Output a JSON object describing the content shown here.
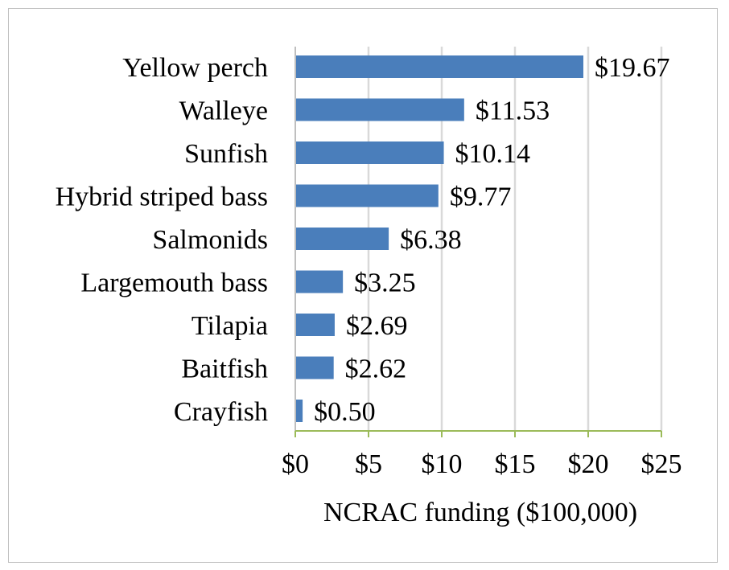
{
  "colors": {
    "bar": "#4a7ebb",
    "grid": "#d9d9d9",
    "axis": "#9bbb59",
    "frame": "#bfbfbf"
  },
  "chart_data": {
    "type": "bar",
    "orientation": "horizontal",
    "categories": [
      "Yellow perch",
      "Walleye",
      "Sunfish",
      "Hybrid striped bass",
      "Salmonids",
      "Largemouth bass",
      "Tilapia",
      "Baitfish",
      "Crayfish"
    ],
    "values": [
      19.67,
      11.53,
      10.14,
      9.77,
      6.38,
      3.25,
      2.69,
      2.62,
      0.5
    ],
    "value_labels": [
      "$19.67",
      "$11.53",
      "$10.14",
      "$9.77",
      "$6.38",
      "$3.25",
      "$2.69",
      "$2.62",
      "$0.50"
    ],
    "xlim": [
      0,
      25
    ],
    "x_ticks": [
      0,
      5,
      10,
      15,
      20,
      25
    ],
    "x_tick_labels": [
      "$0",
      "$5",
      "$10",
      "$15",
      "$20",
      "$25"
    ],
    "xlabel": "NCRAC funding ($100,000)",
    "ylabel": "",
    "title": "",
    "grid": "vertical",
    "legend": "none"
  }
}
